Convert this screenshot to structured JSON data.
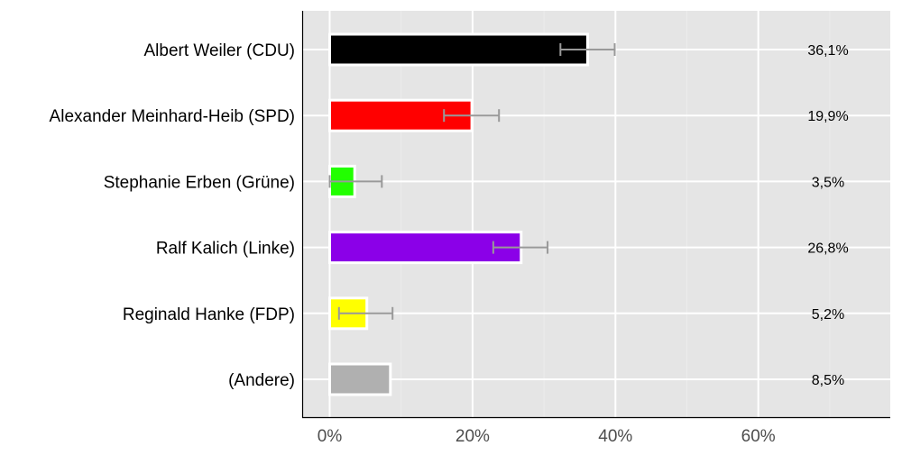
{
  "chart_data": {
    "type": "bar",
    "orientation": "horizontal",
    "categories": [
      "Albert Weiler (CDU)",
      "Alexander Meinhard-Heib (SPD)",
      "Stephanie Erben (Grüne)",
      "Ralf Kalich (Linke)",
      "Reginald Hanke (FDP)",
      "(Andere)"
    ],
    "values": [
      36.1,
      19.9,
      3.5,
      26.8,
      5.2,
      8.5
    ],
    "value_labels": [
      "36,1%",
      "19,9%",
      "3,5%",
      "26,8%",
      "5,2%",
      "8,5%"
    ],
    "error_low": [
      32.3,
      16.0,
      0.0,
      22.9,
      1.3,
      null
    ],
    "error_high": [
      39.9,
      23.7,
      7.3,
      30.5,
      8.8,
      null
    ],
    "colors": [
      "#000000",
      "#ff0000",
      "#22ff00",
      "#8b00e8",
      "#ffff00",
      "#b0b0b0"
    ],
    "xticks": [
      0,
      20,
      40,
      60
    ],
    "xtick_labels": [
      "0%",
      "20%",
      "40%",
      "60%"
    ],
    "xlim": [
      -3.8,
      78.5
    ],
    "grid": true,
    "title": "",
    "xlabel": "",
    "ylabel": ""
  }
}
